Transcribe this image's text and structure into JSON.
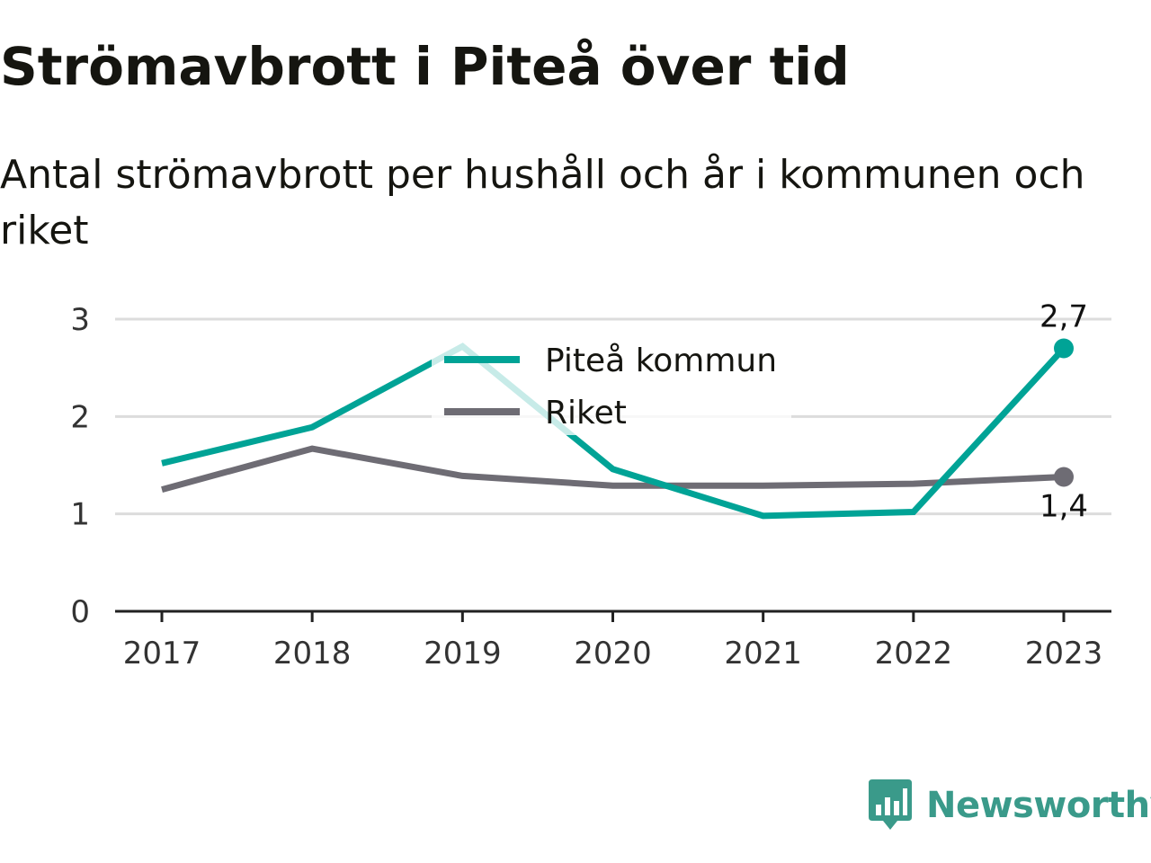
{
  "title": "Strömavbrott i Piteå över tid",
  "subtitle": "Antal strömavbrott per hushåll och år i kommunen och riket",
  "brand": "Newsworthy",
  "colors": {
    "pitea": "#00a396",
    "riket": "#6e6c74",
    "grid": "#dcdcdc",
    "axis": "#222222",
    "brand": "#3a9a8a"
  },
  "chart_data": {
    "type": "line",
    "title": "Strömavbrott i Piteå över tid",
    "subtitle": "Antal strömavbrott per hushåll och år i kommunen och riket",
    "xlabel": "",
    "ylabel": "",
    "x": [
      "2017",
      "2018",
      "2019",
      "2020",
      "2021",
      "2022",
      "2023"
    ],
    "ylim": [
      0,
      3
    ],
    "yticks": [
      "0",
      "1",
      "2",
      "3"
    ],
    "grid": true,
    "legend_placement": "top-center",
    "series": [
      {
        "name": "Piteå kommun",
        "color": "#00a396",
        "values": [
          1.52,
          1.89,
          2.72,
          1.46,
          0.98,
          1.02,
          2.7
        ],
        "end_label": "2,7"
      },
      {
        "name": "Riket",
        "color": "#6e6c74",
        "values": [
          1.25,
          1.67,
          1.39,
          1.29,
          1.29,
          1.31,
          1.38
        ],
        "end_label": "1,4"
      }
    ]
  }
}
